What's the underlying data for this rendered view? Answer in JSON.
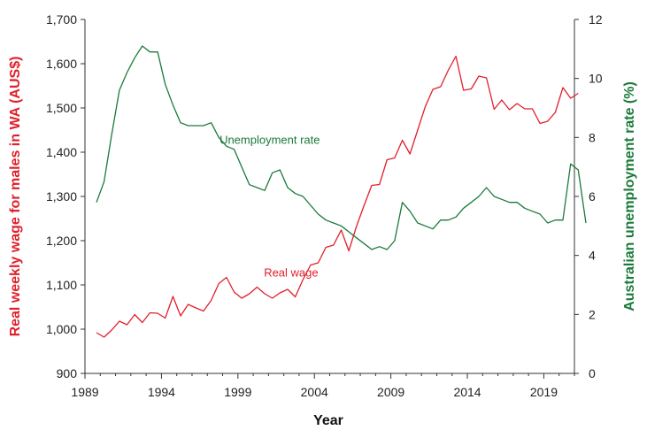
{
  "chart_data": {
    "type": "line",
    "xlabel": "Year",
    "ylabel_left": "Real weekly wage for males in WA (AUS$)",
    "ylabel_right": "Australian unemployment rate (%)",
    "xlim": [
      1989,
      2021
    ],
    "ylim_left": [
      900,
      1700
    ],
    "ylim_right": [
      0,
      12
    ],
    "x_ticks": [
      1989,
      1994,
      1999,
      2004,
      2009,
      2014,
      2019
    ],
    "y_left_ticks": [
      900,
      1000,
      1100,
      1200,
      1300,
      1400,
      1500,
      1600,
      1700
    ],
    "y_left_tick_labels": [
      "900",
      "1,000",
      "1,100",
      "1,200",
      "1,300",
      "1,400",
      "1,500",
      "1,600",
      "1,700"
    ],
    "y_right_ticks": [
      0,
      2,
      4,
      6,
      8,
      10,
      12
    ],
    "y_right_tick_labels": [
      "0",
      "2",
      "4",
      "6",
      "8",
      "10",
      "12"
    ],
    "grid": false,
    "colors": {
      "wage": "#e0202b",
      "unemployment": "#1a7a3a",
      "axis": "#333333"
    },
    "annotations": [
      {
        "text": "Unemployment rate",
        "series": "unemployment",
        "x": 1997.8,
        "y_right": 7.9,
        "color": "#1a7a3a"
      },
      {
        "text": "Real wage",
        "series": "wage",
        "x": 2000.7,
        "y_left": 1127,
        "color": "#e0202b"
      }
    ],
    "series": [
      {
        "key": "wage",
        "axis": "left",
        "color": "#e0202b",
        "points": [
          [
            1989.75,
            992
          ],
          [
            1990.25,
            982
          ],
          [
            1990.75,
            998
          ],
          [
            1991.25,
            1018
          ],
          [
            1991.75,
            1010
          ],
          [
            1992.25,
            1033
          ],
          [
            1992.75,
            1015
          ],
          [
            1993.25,
            1037
          ],
          [
            1993.75,
            1036
          ],
          [
            1994.25,
            1025
          ],
          [
            1994.75,
            1074
          ],
          [
            1995.25,
            1030
          ],
          [
            1995.75,
            1056
          ],
          [
            1996.25,
            1048
          ],
          [
            1996.75,
            1041
          ],
          [
            1997.25,
            1065
          ],
          [
            1997.75,
            1103
          ],
          [
            1998.25,
            1117
          ],
          [
            1998.75,
            1084
          ],
          [
            1999.25,
            1070
          ],
          [
            1999.75,
            1080
          ],
          [
            2000.25,
            1095
          ],
          [
            2000.75,
            1080
          ],
          [
            2001.25,
            1070
          ],
          [
            2001.75,
            1082
          ],
          [
            2002.25,
            1090
          ],
          [
            2002.75,
            1073
          ],
          [
            2003.25,
            1112
          ],
          [
            2003.75,
            1145
          ],
          [
            2004.25,
            1150
          ],
          [
            2004.75,
            1185
          ],
          [
            2005.25,
            1190
          ],
          [
            2005.75,
            1224
          ],
          [
            2006.25,
            1177
          ],
          [
            2006.75,
            1232
          ],
          [
            2007.25,
            1280
          ],
          [
            2007.75,
            1325
          ],
          [
            2008.25,
            1327
          ],
          [
            2008.75,
            1383
          ],
          [
            2009.25,
            1387
          ],
          [
            2009.75,
            1427
          ],
          [
            2010.25,
            1396
          ],
          [
            2010.75,
            1450
          ],
          [
            2011.25,
            1503
          ],
          [
            2011.75,
            1542
          ],
          [
            2012.25,
            1548
          ],
          [
            2012.75,
            1585
          ],
          [
            2013.25,
            1617
          ],
          [
            2013.75,
            1540
          ],
          [
            2014.25,
            1543
          ],
          [
            2014.75,
            1572
          ],
          [
            2015.25,
            1568
          ],
          [
            2015.75,
            1497
          ],
          [
            2016.25,
            1518
          ],
          [
            2016.75,
            1496
          ],
          [
            2017.25,
            1510
          ],
          [
            2017.75,
            1498
          ],
          [
            2018.25,
            1498
          ],
          [
            2018.75,
            1465
          ],
          [
            2019.25,
            1470
          ],
          [
            2019.75,
            1490
          ],
          [
            2020.25,
            1546
          ],
          [
            2020.75,
            1522
          ],
          [
            2021.25,
            1533
          ]
        ]
      },
      {
        "key": "unemployment",
        "axis": "right",
        "color": "#1a7a3a",
        "points": [
          [
            1989.75,
            5.8
          ],
          [
            1990.25,
            6.5
          ],
          [
            1990.75,
            8.1
          ],
          [
            1991.25,
            9.6
          ],
          [
            1991.75,
            10.2
          ],
          [
            1992.25,
            10.7
          ],
          [
            1992.75,
            11.1
          ],
          [
            1993.25,
            10.9
          ],
          [
            1993.75,
            10.9
          ],
          [
            1994.25,
            9.8
          ],
          [
            1994.75,
            9.1
          ],
          [
            1995.25,
            8.5
          ],
          [
            1995.75,
            8.4
          ],
          [
            1996.25,
            8.4
          ],
          [
            1996.75,
            8.4
          ],
          [
            1997.25,
            8.5
          ],
          [
            1997.75,
            8.0
          ],
          [
            1998.25,
            7.7
          ],
          [
            1998.75,
            7.6
          ],
          [
            1999.25,
            7.0
          ],
          [
            1999.75,
            6.4
          ],
          [
            2000.25,
            6.3
          ],
          [
            2000.75,
            6.2
          ],
          [
            2001.25,
            6.8
          ],
          [
            2001.75,
            6.9
          ],
          [
            2002.25,
            6.3
          ],
          [
            2002.75,
            6.1
          ],
          [
            2003.25,
            6.0
          ],
          [
            2003.75,
            5.7
          ],
          [
            2004.25,
            5.4
          ],
          [
            2004.75,
            5.2
          ],
          [
            2005.25,
            5.1
          ],
          [
            2005.75,
            5.0
          ],
          [
            2006.25,
            4.8
          ],
          [
            2006.75,
            4.6
          ],
          [
            2007.25,
            4.4
          ],
          [
            2007.75,
            4.2
          ],
          [
            2008.25,
            4.3
          ],
          [
            2008.75,
            4.2
          ],
          [
            2009.25,
            4.5
          ],
          [
            2009.75,
            5.8
          ],
          [
            2010.25,
            5.5
          ],
          [
            2010.75,
            5.1
          ],
          [
            2011.25,
            5.0
          ],
          [
            2011.75,
            4.9
          ],
          [
            2012.25,
            5.2
          ],
          [
            2012.75,
            5.2
          ],
          [
            2013.25,
            5.3
          ],
          [
            2013.75,
            5.6
          ],
          [
            2014.25,
            5.8
          ],
          [
            2014.75,
            6.0
          ],
          [
            2015.25,
            6.3
          ],
          [
            2015.75,
            6.0
          ],
          [
            2016.25,
            5.9
          ],
          [
            2016.75,
            5.8
          ],
          [
            2017.25,
            5.8
          ],
          [
            2017.75,
            5.6
          ],
          [
            2018.25,
            5.5
          ],
          [
            2018.75,
            5.4
          ],
          [
            2019.25,
            5.1
          ],
          [
            2019.75,
            5.2
          ],
          [
            2020.25,
            5.2
          ],
          [
            2020.75,
            7.1
          ],
          [
            2021.25,
            6.9
          ],
          [
            2021.75,
            5.1
          ]
        ]
      }
    ]
  }
}
